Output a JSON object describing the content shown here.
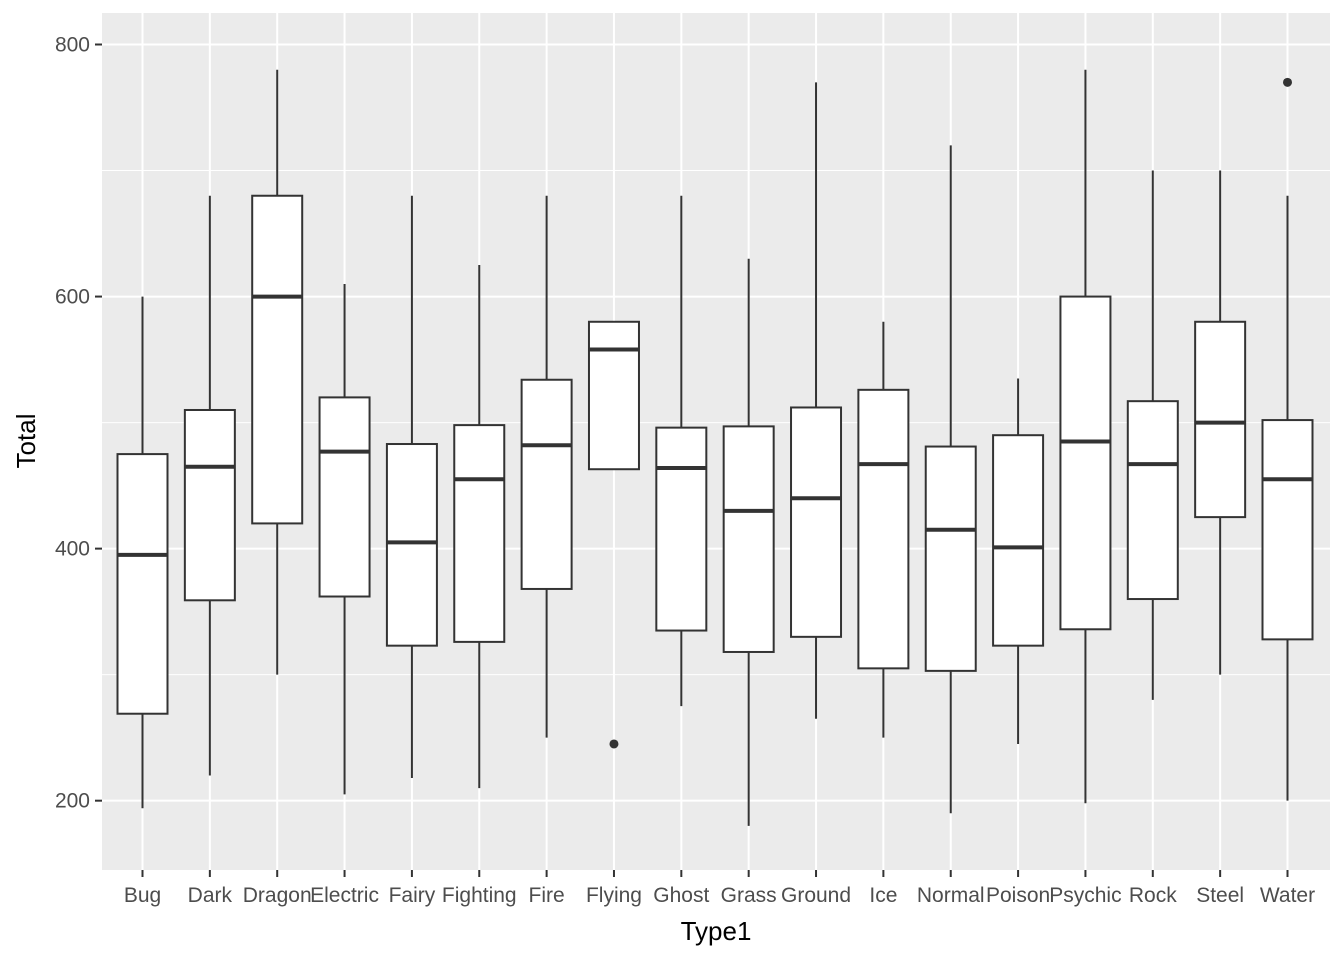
{
  "chart_data": {
    "type": "boxplot",
    "xlabel": "Type1",
    "ylabel": "Total",
    "ylim": [
      145,
      825
    ],
    "yticks": [
      200,
      400,
      600,
      800
    ],
    "grid": true,
    "categories": [
      "Bug",
      "Dark",
      "Dragon",
      "Electric",
      "Fairy",
      "Fighting",
      "Fire",
      "Flying",
      "Ghost",
      "Grass",
      "Ground",
      "Ice",
      "Normal",
      "Poison",
      "Psychic",
      "Rock",
      "Steel",
      "Water"
    ],
    "boxes": [
      {
        "min": 194,
        "q1": 269,
        "median": 395,
        "q3": 475,
        "max": 600,
        "outliers": []
      },
      {
        "min": 220,
        "q1": 359,
        "median": 465,
        "q3": 510,
        "max": 680,
        "outliers": []
      },
      {
        "min": 300,
        "q1": 420,
        "median": 600,
        "q3": 680,
        "max": 780,
        "outliers": []
      },
      {
        "min": 205,
        "q1": 362,
        "median": 477,
        "q3": 520,
        "max": 610,
        "outliers": []
      },
      {
        "min": 218,
        "q1": 323,
        "median": 405,
        "q3": 483,
        "max": 680,
        "outliers": []
      },
      {
        "min": 210,
        "q1": 326,
        "median": 455,
        "q3": 498,
        "max": 625,
        "outliers": []
      },
      {
        "min": 250,
        "q1": 368,
        "median": 482,
        "q3": 534,
        "max": 680,
        "outliers": []
      },
      {
        "min": 463,
        "q1": 463,
        "median": 558,
        "q3": 580,
        "max": 580,
        "outliers": [
          245
        ]
      },
      {
        "min": 275,
        "q1": 335,
        "median": 464,
        "q3": 496,
        "max": 680,
        "outliers": []
      },
      {
        "min": 180,
        "q1": 318,
        "median": 430,
        "q3": 497,
        "max": 630,
        "outliers": []
      },
      {
        "min": 265,
        "q1": 330,
        "median": 440,
        "q3": 512,
        "max": 770,
        "outliers": []
      },
      {
        "min": 250,
        "q1": 305,
        "median": 467,
        "q3": 526,
        "max": 580,
        "outliers": []
      },
      {
        "min": 190,
        "q1": 303,
        "median": 415,
        "q3": 481,
        "max": 720,
        "outliers": []
      },
      {
        "min": 245,
        "q1": 323,
        "median": 401,
        "q3": 490,
        "max": 535,
        "outliers": []
      },
      {
        "min": 198,
        "q1": 336,
        "median": 485,
        "q3": 600,
        "max": 780,
        "outliers": []
      },
      {
        "min": 280,
        "q1": 360,
        "median": 467,
        "q3": 517,
        "max": 700,
        "outliers": []
      },
      {
        "min": 300,
        "q1": 425,
        "median": 500,
        "q3": 580,
        "max": 700,
        "outliers": []
      },
      {
        "min": 200,
        "q1": 328,
        "median": 455,
        "q3": 502,
        "max": 680,
        "outliers": [
          770
        ]
      }
    ],
    "colors": {
      "panel_bg": "#ebebeb",
      "grid": "#ffffff",
      "box_fill": "#ffffff",
      "box_stroke": "#333333"
    }
  }
}
